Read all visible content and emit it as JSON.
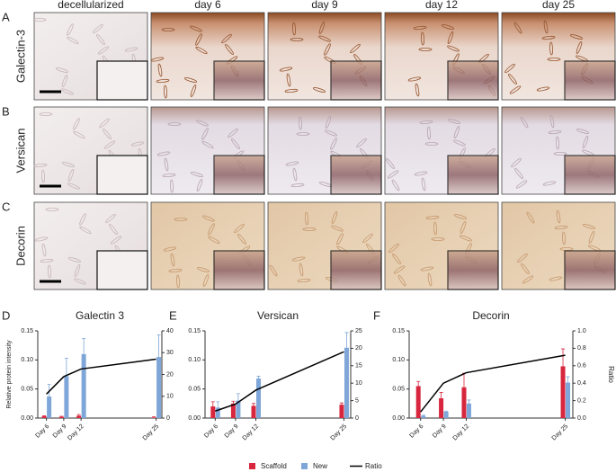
{
  "panels": {
    "letters": [
      "A",
      "B",
      "C"
    ],
    "columns": [
      "decellularized",
      "day 6",
      "day 9",
      "day 12",
      "day 25"
    ],
    "rows": [
      "Galectin-3",
      "Versican",
      "Decorin"
    ]
  },
  "chart_data": [
    {
      "type": "bar",
      "panel": "D",
      "title": "Galectin 3",
      "ylabel": "Relative protein intensity",
      "x": [
        6,
        9,
        12,
        25
      ],
      "xticks": [
        {
          "value": 6,
          "label": "Day 6"
        },
        {
          "value": 9,
          "label": "Day 9"
        },
        {
          "value": 12,
          "label": "Day 12"
        },
        {
          "value": 25,
          "label": "Day 25"
        }
      ],
      "xlim": [
        4.5,
        26
      ],
      "ylim": [
        0,
        0.15
      ],
      "yticks": [
        {
          "value": 0,
          "label": "0.00"
        },
        {
          "value": 0.05,
          "label": "0.05"
        },
        {
          "value": 0.1,
          "label": "0.10"
        },
        {
          "value": 0.15,
          "label": "0.15"
        }
      ],
      "y2lim": [
        0,
        40
      ],
      "y2ticks": [
        0,
        10,
        20,
        30,
        40
      ],
      "series": [
        {
          "name": "Scaffold",
          "type": "bar",
          "color": "#d7263d",
          "values": [
            0.003,
            0.002,
            0.004,
            0.001
          ],
          "errors": [
            0.001,
            0.001,
            0.002,
            0.001
          ]
        },
        {
          "name": "New",
          "type": "bar",
          "color": "#7ea6d8",
          "values": [
            0.037,
            0.072,
            0.11,
            0.105
          ],
          "errors": [
            0.021,
            0.031,
            0.027,
            0.038
          ]
        },
        {
          "name": "Ratio",
          "type": "line",
          "axis": "y2",
          "color": "#000000",
          "values": [
            11,
            19,
            22.5,
            27
          ]
        }
      ]
    },
    {
      "type": "bar",
      "panel": "E",
      "title": "Versican",
      "x": [
        6,
        9,
        12,
        25
      ],
      "xticks": [
        {
          "value": 6,
          "label": "Day 6"
        },
        {
          "value": 9,
          "label": "Day 9"
        },
        {
          "value": 12,
          "label": "Day 12"
        },
        {
          "value": 25,
          "label": "Day 25"
        }
      ],
      "xlim": [
        4.5,
        26
      ],
      "ylim": [
        0,
        0.15
      ],
      "yticks": [
        {
          "value": 0,
          "label": "0.00"
        },
        {
          "value": 0.05,
          "label": "0.05"
        },
        {
          "value": 0.1,
          "label": "0.10"
        },
        {
          "value": 0.15,
          "label": "0.15"
        }
      ],
      "y2lim": [
        0,
        25
      ],
      "y2ticks": [
        0,
        5,
        10,
        15,
        20,
        25
      ],
      "series": [
        {
          "name": "Scaffold",
          "type": "bar",
          "color": "#d7263d",
          "values": [
            0.02,
            0.025,
            0.021,
            0.023
          ],
          "errors": [
            0.008,
            0.004,
            0.004,
            0.003
          ]
        },
        {
          "name": "New",
          "type": "bar",
          "color": "#7ea6d8",
          "values": [
            0.018,
            0.03,
            0.068,
            0.121
          ],
          "errors": [
            0.01,
            0.012,
            0.004,
            0.026
          ]
        },
        {
          "name": "Ratio",
          "type": "line",
          "axis": "y2",
          "color": "#000000",
          "values": [
            2,
            4,
            8,
            19
          ]
        }
      ]
    },
    {
      "type": "bar",
      "panel": "F",
      "title": "Decorin",
      "y2label": "Ratio",
      "x": [
        6,
        9,
        12,
        25
      ],
      "xticks": [
        {
          "value": 6,
          "label": "Day 6"
        },
        {
          "value": 9,
          "label": "Day 9"
        },
        {
          "value": 12,
          "label": "Day 12"
        },
        {
          "value": 25,
          "label": "Day 25"
        }
      ],
      "xlim": [
        4.5,
        26
      ],
      "ylim": [
        0,
        0.15
      ],
      "yticks": [
        {
          "value": 0,
          "label": "0.00"
        },
        {
          "value": 0.05,
          "label": "0.05"
        },
        {
          "value": 0.1,
          "label": "0.10"
        },
        {
          "value": 0.15,
          "label": "0.15"
        }
      ],
      "y2lim": [
        0,
        1
      ],
      "y2ticks": [
        {
          "value": 0,
          "label": "0.0"
        },
        {
          "value": 0.2,
          "label": "0.2"
        },
        {
          "value": 0.4,
          "label": "0.4"
        },
        {
          "value": 0.6,
          "label": "0.6"
        },
        {
          "value": 0.8,
          "label": "0.8"
        },
        {
          "value": 1,
          "label": "1.0"
        }
      ],
      "series": [
        {
          "name": "Scaffold",
          "type": "bar",
          "color": "#d7263d",
          "values": [
            0.055,
            0.034,
            0.053,
            0.089
          ],
          "errors": [
            0.008,
            0.01,
            0.024,
            0.03
          ]
        },
        {
          "name": "New",
          "type": "bar",
          "color": "#7ea6d8",
          "values": [
            0.004,
            0.011,
            0.025,
            0.061
          ],
          "errors": [
            0.001,
            0.001,
            0.006,
            0.01
          ]
        },
        {
          "name": "Ratio",
          "type": "line",
          "axis": "y2",
          "color": "#000000",
          "values": [
            0.07,
            0.4,
            0.52,
            0.72
          ]
        }
      ]
    }
  ]
}
